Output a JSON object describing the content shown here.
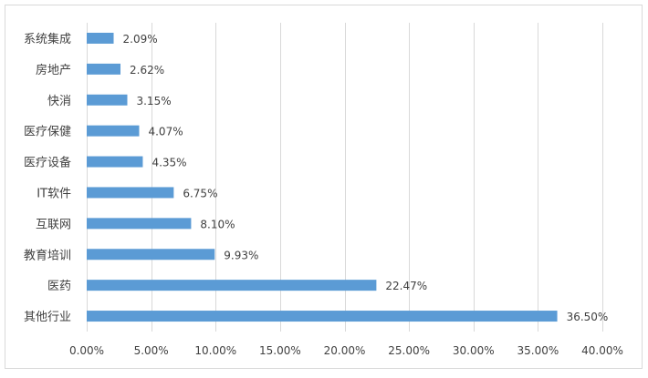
{
  "chart_data": {
    "type": "bar",
    "orientation": "horizontal",
    "title": "",
    "xlabel": "",
    "ylabel": "",
    "categories": [
      "系统集成",
      "房地产",
      "快消",
      "医疗保健",
      "医疗设备",
      "IT软件",
      "互联网",
      "教育培训",
      "医药",
      "其他行业"
    ],
    "values": [
      2.09,
      2.62,
      3.15,
      4.07,
      4.35,
      6.75,
      8.1,
      9.93,
      22.47,
      36.5
    ],
    "value_labels": [
      "2.09%",
      "2.62%",
      "3.15%",
      "4.07%",
      "4.35%",
      "6.75%",
      "8.10%",
      "9.93%",
      "22.47%",
      "36.50%"
    ],
    "xlim": [
      0,
      40
    ],
    "x_ticks": [
      0,
      5,
      10,
      15,
      20,
      25,
      30,
      35,
      40
    ],
    "x_tick_labels": [
      "0.00%",
      "5.00%",
      "10.00%",
      "15.00%",
      "20.00%",
      "25.00%",
      "30.00%",
      "35.00%",
      "40.00%"
    ],
    "grid": "vertical",
    "legend": "none",
    "colors": {
      "bar": "#5b9bd5",
      "grid": "#d9d9d9",
      "text": "#404040",
      "frame": "#d9d9d9"
    }
  }
}
